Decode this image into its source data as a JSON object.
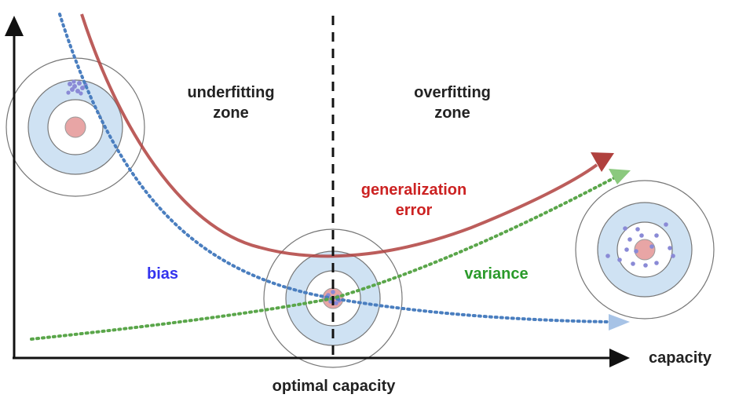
{
  "labels": {
    "underfitting_line1": "underfitting",
    "underfitting_line2": "zone",
    "overfitting_line1": "overfitting",
    "overfitting_line2": "zone",
    "generalization_line1": "generalization",
    "generalization_line2": "error",
    "bias": "bias",
    "variance": "variance",
    "x_axis": "capacity",
    "optimal": "optimal capacity"
  },
  "colors": {
    "axis": "#111111",
    "generalization_curve": "#b0413e",
    "bias_curve": "#4a7ebf",
    "variance_curve": "#5aa64a",
    "bias_label": "#3333ee",
    "variance_label": "#2a9a2a",
    "generalization_label": "#cc2222",
    "target_ring_fill": "#cfe2f3",
    "target_bullseye": "#e8a5a5",
    "shot_dots": "#8a8ad6"
  },
  "icons": {
    "targets": [
      "target-underfitting-icon",
      "target-optimal-icon",
      "target-overfitting-icon"
    ]
  }
}
